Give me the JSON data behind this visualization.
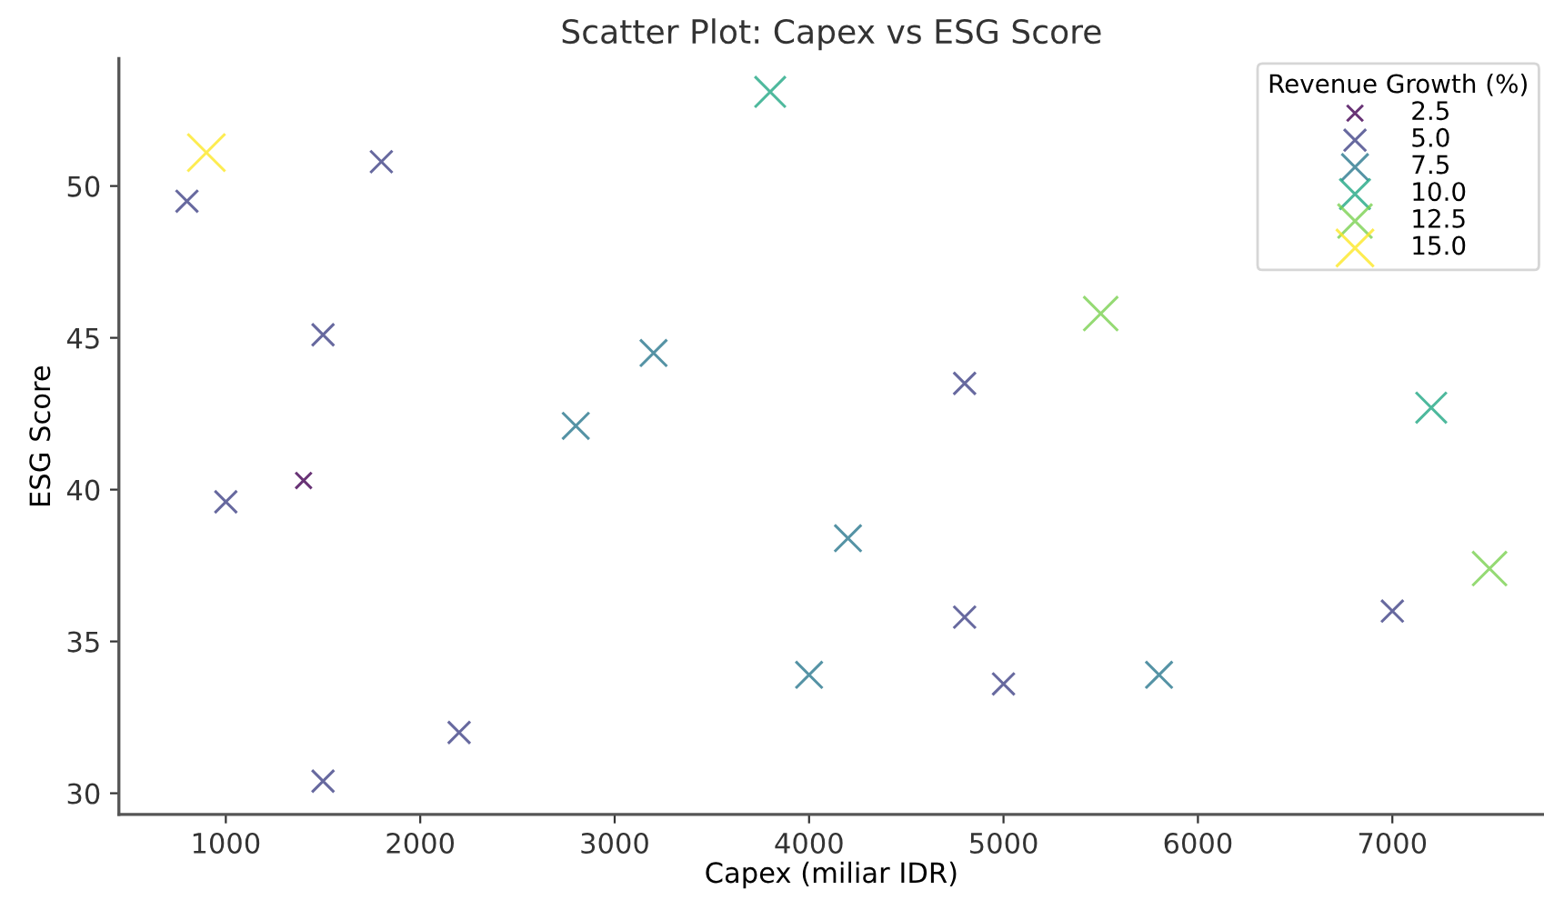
{
  "chart_data": {
    "type": "scatter",
    "title": "Scatter Plot: Capex vs ESG Score",
    "xlabel": "Capex (miliar IDR)",
    "ylabel": "ESG Score",
    "legend_title": "Revenue Growth (%)",
    "series": [
      {
        "name": "2.5",
        "color": "#440154",
        "x": [
          1400
        ],
        "values": [
          40.3
        ]
      },
      {
        "name": "5.0",
        "color": "#414487",
        "x": [
          800,
          1800,
          1500,
          1000,
          4800,
          4800,
          7000,
          5000,
          2200,
          1500
        ],
        "values": [
          49.5,
          50.8,
          45.1,
          39.6,
          43.5,
          35.8,
          36.0,
          33.6,
          32.0,
          30.4
        ]
      },
      {
        "name": "7.5",
        "color": "#2a788e",
        "x": [
          3200,
          2800,
          4200,
          4000,
          5800
        ],
        "values": [
          44.5,
          42.1,
          38.4,
          33.9,
          33.9
        ]
      },
      {
        "name": "10.0",
        "color": "#22a884",
        "x": [
          3800,
          7200
        ],
        "values": [
          53.1,
          42.7
        ]
      },
      {
        "name": "12.5",
        "color": "#7ad151",
        "x": [
          5500,
          7500
        ],
        "values": [
          45.8,
          37.4
        ]
      },
      {
        "name": "15.0",
        "color": "#fde725",
        "x": [
          900
        ],
        "values": [
          51.1
        ]
      }
    ],
    "marker": "cross",
    "xlim": [
      450,
      7780
    ],
    "ylim": [
      29.3,
      54.2
    ],
    "xticks": [
      1000,
      2000,
      3000,
      4000,
      5000,
      6000,
      7000
    ],
    "yticks": [
      30,
      35,
      40,
      45,
      50
    ],
    "legend": "top right"
  }
}
